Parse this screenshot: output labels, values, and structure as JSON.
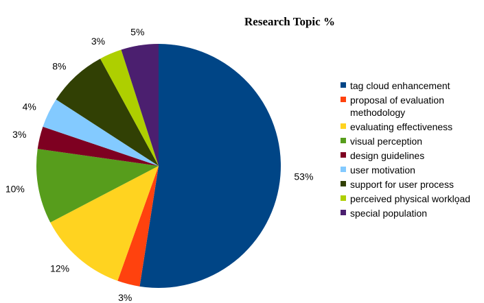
{
  "chart_data": {
    "type": "pie",
    "title": "Research Topic %",
    "legend_position": "right",
    "slices": [
      {
        "label": "tag cloud enhancement",
        "value": 53,
        "display": "53%",
        "color": "#004586"
      },
      {
        "label": "proposal of evaluation methodology",
        "value": 3,
        "display": "3%",
        "color": "#ff420e"
      },
      {
        "label": "evaluating effectiveness",
        "value": 12,
        "display": "12%",
        "color": "#ffd320"
      },
      {
        "label": "visual perception",
        "value": 10,
        "display": "10%",
        "color": "#579d1c"
      },
      {
        "label": "design guidelines",
        "value": 3,
        "display": "3%",
        "color": "#7e0021"
      },
      {
        "label": "user motivation",
        "value": 4,
        "display": "4%",
        "color": "#83caff"
      },
      {
        "label": "support for user process",
        "value": 8,
        "display": "8%",
        "color": "#314004"
      },
      {
        "label": "perceived physical workload",
        "value": 3,
        "display": "3%",
        "color": "#aecf00"
      },
      {
        "label": "special population",
        "value": 5,
        "display": "5%",
        "color": "#4b1f6f"
      }
    ]
  }
}
